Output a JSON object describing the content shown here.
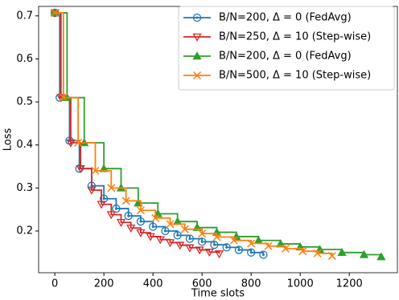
{
  "chart_data": {
    "type": "step-line",
    "xlabel": "Time slots",
    "ylabel": "Loss",
    "xlim": [
      -66,
      1396
    ],
    "ylim": [
      0.103,
      0.722
    ],
    "xticks": [
      0,
      200,
      400,
      600,
      800,
      1000,
      1200
    ],
    "yticks": [
      0.2,
      0.3,
      0.4,
      0.5,
      0.6,
      0.7
    ],
    "grid": false,
    "legend": "upper right",
    "series": [
      {
        "name": "B/N=200, Δ = 0 (FedAvg)",
        "color": "#1f77b4",
        "marker": "circle",
        "x": [
          0,
          20,
          60,
          100,
          150,
          200,
          250,
          300,
          350,
          400,
          450,
          500,
          550,
          600,
          650,
          700,
          750,
          800,
          850
        ],
        "values": [
          0.707,
          0.51,
          0.41,
          0.345,
          0.305,
          0.275,
          0.252,
          0.235,
          0.222,
          0.21,
          0.2,
          0.19,
          0.182,
          0.175,
          0.168,
          0.162,
          0.156,
          0.15,
          0.145
        ]
      },
      {
        "name": "B/N=250, Δ = 10 (Step-wise)",
        "color": "#d62728",
        "marker": "triangle-down",
        "x": [
          0,
          25,
          65,
          105,
          150,
          190,
          230,
          270,
          310,
          350,
          390,
          430,
          470,
          510,
          550,
          590,
          630,
          670
        ],
        "values": [
          0.707,
          0.51,
          0.405,
          0.345,
          0.295,
          0.262,
          0.238,
          0.22,
          0.207,
          0.196,
          0.187,
          0.18,
          0.173,
          0.167,
          0.161,
          0.156,
          0.151,
          0.147
        ]
      },
      {
        "name": "B/N=200, Δ = 0 (FedAvg)",
        "color": "#2ca02c",
        "marker": "triangle-up",
        "x": [
          0,
          50,
          120,
          200,
          270,
          340,
          420,
          500,
          580,
          660,
          740,
          830,
          920,
          1000,
          1080,
          1170,
          1260,
          1330
        ],
        "values": [
          0.707,
          0.51,
          0.405,
          0.345,
          0.3,
          0.265,
          0.24,
          0.222,
          0.208,
          0.197,
          0.187,
          0.178,
          0.17,
          0.163,
          0.157,
          0.15,
          0.145,
          0.14
        ]
      },
      {
        "name": "B/N=500, Δ = 10 (Step-wise)",
        "color": "#ff7f0e",
        "marker": "x",
        "x": [
          0,
          35,
          95,
          165,
          230,
          290,
          350,
          410,
          470,
          530,
          600,
          660,
          730,
          800,
          870,
          940,
          1010,
          1070,
          1130
        ],
        "values": [
          0.707,
          0.51,
          0.405,
          0.34,
          0.3,
          0.27,
          0.248,
          0.23,
          0.216,
          0.204,
          0.194,
          0.186,
          0.178,
          0.171,
          0.165,
          0.159,
          0.153,
          0.148,
          0.142
        ]
      }
    ]
  }
}
